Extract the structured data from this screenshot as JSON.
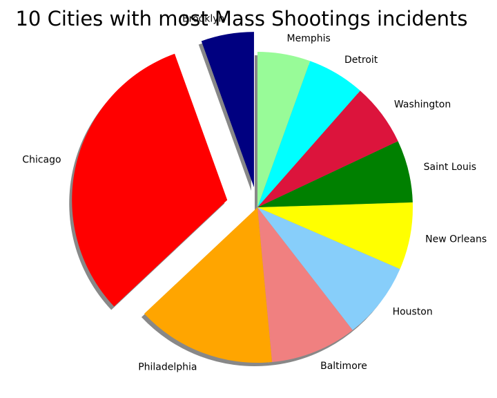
{
  "chart_data": {
    "type": "pie",
    "title": "10 Cities with most Mass Shootings incidents",
    "start_angle_deg": 90,
    "direction": "counterclockwise",
    "shadow": true,
    "slices": [
      {
        "label": "Brooklyn",
        "value": 5.5,
        "color": "#000080",
        "explode": 0.13
      },
      {
        "label": "Chicago",
        "value": 31.5,
        "color": "#ff0000",
        "explode": 0.2
      },
      {
        "label": "Philadelphia",
        "value": 14.5,
        "color": "#ffa500",
        "explode": 0
      },
      {
        "label": "Baltimore",
        "value": 9,
        "color": "#f08080",
        "explode": 0
      },
      {
        "label": "Houston",
        "value": 8,
        "color": "#87cefa",
        "explode": 0
      },
      {
        "label": "New Orleans",
        "value": 7,
        "color": "#ffff00",
        "explode": 0
      },
      {
        "label": "Saint Louis",
        "value": 6.5,
        "color": "#008000",
        "explode": 0
      },
      {
        "label": "Washington",
        "value": 6.5,
        "color": "#dc143c",
        "explode": 0
      },
      {
        "label": "Detroit",
        "value": 6,
        "color": "#00ffff",
        "explode": 0
      },
      {
        "label": "Memphis",
        "value": 5.5,
        "color": "#98fb98",
        "explode": 0
      }
    ]
  }
}
